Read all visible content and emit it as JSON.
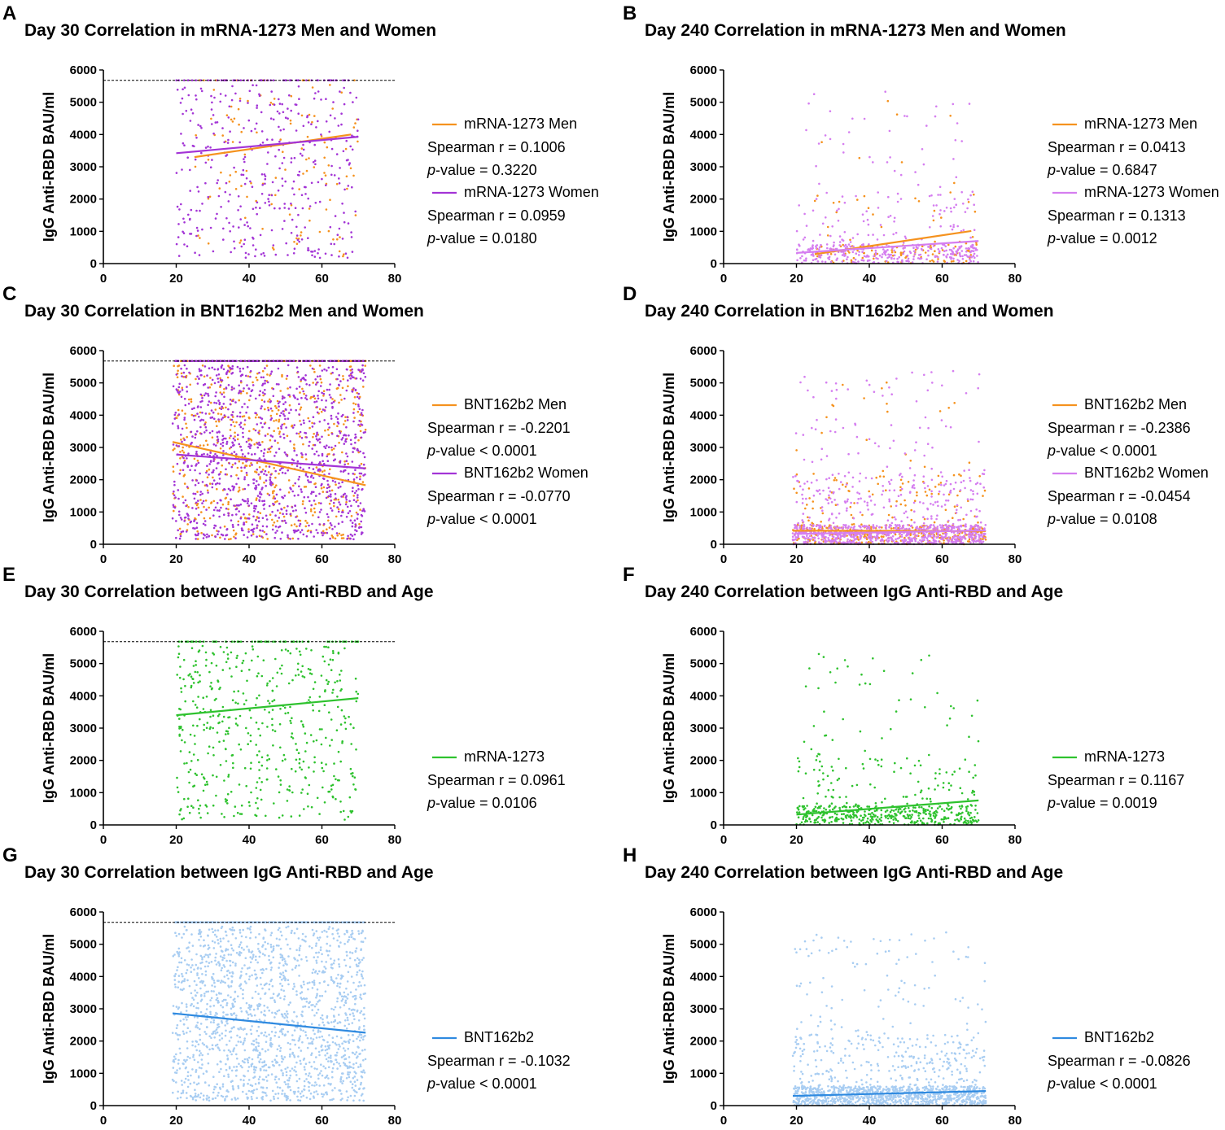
{
  "figure": {
    "ylabel": "IgG Anti-RBD BAU/ml",
    "colors": {
      "orange": "#f5921e",
      "purple": "#a334d6",
      "pink": "#d57ef0",
      "green": "#2ec22e",
      "blue": "#5ba7ee",
      "lightblue": "#a8cdf2",
      "red": "#e8553a"
    }
  },
  "chart_data": [
    {
      "panel": "A",
      "type": "scatter",
      "title": "Day 30 Correlation in mRNA-1273 Men and Women",
      "xlabel": "",
      "ylabel": "IgG Anti-RBD BAU/ml",
      "xlim": [
        0,
        80
      ],
      "ylim": [
        0,
        6000
      ],
      "xticks": [
        0,
        20,
        40,
        60,
        80
      ],
      "yticks": [
        0,
        1000,
        2000,
        3000,
        4000,
        5000,
        6000
      ],
      "ceiling": 5680,
      "series": [
        {
          "name": "mRNA-1273 Men",
          "color": "#f5921e",
          "n": 130,
          "xrange": [
            25,
            70
          ],
          "ydist": "wide",
          "fit": {
            "x": [
              25,
              68
            ],
            "y": [
              3300,
              4000
            ]
          },
          "stats": [
            "Spearman r = 0.1006",
            "p-value = 0.3220"
          ]
        },
        {
          "name": "mRNA-1273 Women",
          "color": "#a334d6",
          "n": 430,
          "xrange": [
            20,
            70
          ],
          "ydist": "wide",
          "fit": {
            "x": [
              20,
              70
            ],
            "y": [
              3420,
              3930
            ]
          },
          "stats": [
            "Spearman r = 0.0959",
            "p-value = 0.0180"
          ]
        }
      ]
    },
    {
      "panel": "B",
      "type": "scatter",
      "title": "Day 240 Correlation in mRNA-1273 Men and Women",
      "xlabel": "",
      "ylabel": "IgG Anti-RBD BAU/ml",
      "xlim": [
        0,
        80
      ],
      "ylim": [
        0,
        6000
      ],
      "xticks": [
        0,
        20,
        40,
        60,
        80
      ],
      "yticks": [
        0,
        1000,
        2000,
        3000,
        4000,
        5000,
        6000
      ],
      "ceiling": null,
      "series": [
        {
          "name": "mRNA-1273 Men",
          "color": "#f5921e",
          "n": 130,
          "xrange": [
            25,
            70
          ],
          "ydist": "low",
          "fit": {
            "x": [
              25,
              68
            ],
            "y": [
              290,
              1010
            ]
          },
          "stats": [
            "Spearman r = 0.0413",
            "p-value = 0.6847"
          ]
        },
        {
          "name": "mRNA-1273 Women",
          "color": "#d57ef0",
          "n": 430,
          "xrange": [
            20,
            70
          ],
          "ydist": "low",
          "fit": {
            "x": [
              20,
              70
            ],
            "y": [
              330,
              700
            ]
          },
          "stats": [
            "Spearman r = 0.1313",
            "p-value = 0.0012"
          ]
        }
      ]
    },
    {
      "panel": "C",
      "type": "scatter",
      "title": "Day 30 Correlation in BNT162b2 Men and Women",
      "xlabel": "",
      "ylabel": "IgG Anti-RBD BAU/ml",
      "xlim": [
        0,
        80
      ],
      "ylim": [
        0,
        6000
      ],
      "xticks": [
        0,
        20,
        40,
        60,
        80
      ],
      "yticks": [
        0,
        1000,
        2000,
        3000,
        4000,
        5000,
        6000
      ],
      "ceiling": 5680,
      "series": [
        {
          "name": "BNT162b2 Men",
          "color": "#f5921e",
          "n": 650,
          "xrange": [
            19,
            72
          ],
          "ydist": "wide",
          "fit": {
            "x": [
              19,
              72
            ],
            "y": [
              3170,
              1830
            ]
          },
          "stats": [
            "Spearman r = -0.2201",
            "p-value < 0.0001"
          ]
        },
        {
          "name": "BNT162b2 Women",
          "color": "#a334d6",
          "n": 1300,
          "xrange": [
            19,
            72
          ],
          "ydist": "wide",
          "fit": {
            "x": [
              20,
              72
            ],
            "y": [
              2780,
              2350
            ]
          },
          "stats": [
            "Spearman r = -0.0770",
            "p-value < 0.0001"
          ]
        }
      ]
    },
    {
      "panel": "D",
      "type": "scatter",
      "title": "Day 240 Correlation in BNT162b2 Men and Women",
      "xlabel": "",
      "ylabel": "IgG Anti-RBD BAU/ml",
      "xlim": [
        0,
        80
      ],
      "ylim": [
        0,
        6000
      ],
      "xticks": [
        0,
        20,
        40,
        60,
        80
      ],
      "yticks": [
        0,
        1000,
        2000,
        3000,
        4000,
        5000,
        6000
      ],
      "ceiling": null,
      "series": [
        {
          "name": "BNT162b2 Men",
          "color": "#f5921e",
          "n": 450,
          "xrange": [
            19,
            72
          ],
          "ydist": "low",
          "fit": {
            "x": [
              19,
              72
            ],
            "y": [
              420,
              410
            ]
          },
          "stats": [
            "Spearman r = -0.2386",
            "p-value < 0.0001"
          ]
        },
        {
          "name": "BNT162b2 Women",
          "color": "#d57ef0",
          "n": 1000,
          "xrange": [
            19,
            72
          ],
          "ydist": "low",
          "fit": {
            "x": [
              20,
              72
            ],
            "y": [
              320,
              430
            ]
          },
          "stats": [
            "Spearman r = -0.0454",
            "p-value = 0.0108"
          ]
        }
      ]
    },
    {
      "panel": "E",
      "type": "scatter",
      "title": "Day 30 Correlation between IgG Anti-RBD and Age",
      "xlabel": "",
      "ylabel": "IgG Anti-RBD BAU/ml",
      "xlim": [
        0,
        80
      ],
      "ylim": [
        0,
        6000
      ],
      "xticks": [
        0,
        20,
        40,
        60,
        80
      ],
      "yticks": [
        0,
        1000,
        2000,
        3000,
        4000,
        5000,
        6000
      ],
      "ceiling": 5680,
      "series": [
        {
          "name": "mRNA-1273",
          "color": "#2ec22e",
          "n": 560,
          "xrange": [
            20,
            70
          ],
          "ydist": "wide",
          "fit": {
            "x": [
              20,
              70
            ],
            "y": [
              3400,
              3930
            ]
          },
          "stats": [
            "Spearman r = 0.0961",
            "p-value = 0.0106"
          ]
        }
      ]
    },
    {
      "panel": "F",
      "type": "scatter",
      "title": "Day 240 Correlation between IgG Anti-RBD and Age",
      "xlabel": "",
      "ylabel": "IgG Anti-RBD BAU/ml",
      "xlim": [
        0,
        80
      ],
      "ylim": [
        0,
        6000
      ],
      "xticks": [
        0,
        20,
        40,
        60,
        80
      ],
      "yticks": [
        0,
        1000,
        2000,
        3000,
        4000,
        5000,
        6000
      ],
      "ceiling": null,
      "series": [
        {
          "name": "mRNA-1273",
          "color": "#2ec22e",
          "n": 560,
          "xrange": [
            20,
            70
          ],
          "ydist": "low",
          "fit": {
            "x": [
              20,
              70
            ],
            "y": [
              320,
              760
            ]
          },
          "stats": [
            "Spearman r = 0.1167",
            "p-value = 0.0019"
          ]
        }
      ]
    },
    {
      "panel": "G",
      "type": "scatter",
      "title": "Day 30 Correlation between IgG Anti-RBD and Age",
      "xlabel": "",
      "ylabel": "IgG Anti-RBD BAU/ml",
      "xlim": [
        0,
        80
      ],
      "ylim": [
        0,
        6000
      ],
      "xticks": [
        0,
        20,
        40,
        60,
        80
      ],
      "yticks": [
        0,
        1000,
        2000,
        3000,
        4000,
        5000,
        6000
      ],
      "ceiling": 5680,
      "series": [
        {
          "name": "BNT162b2",
          "color": "#a8cdf2",
          "lineColor": "#2f8ae0",
          "n": 1900,
          "xrange": [
            19,
            72
          ],
          "ydist": "wide",
          "fit": {
            "x": [
              19,
              72
            ],
            "y": [
              2860,
              2260
            ]
          },
          "stats": [
            "Spearman r = -0.1032",
            "p-value < 0.0001"
          ]
        }
      ]
    },
    {
      "panel": "H",
      "type": "scatter",
      "title": "Day 240 Correlation between IgG Anti-RBD and Age",
      "xlabel": "",
      "ylabel": "IgG Anti-RBD BAU/ml",
      "xlim": [
        0,
        80
      ],
      "ylim": [
        0,
        6000
      ],
      "xticks": [
        0,
        20,
        40,
        60,
        80
      ],
      "yticks": [
        0,
        1000,
        2000,
        3000,
        4000,
        5000,
        6000
      ],
      "ceiling": null,
      "series": [
        {
          "name": "BNT162b2",
          "color": "#a8cdf2",
          "lineColor": "#2f8ae0",
          "n": 1400,
          "xrange": [
            19,
            72
          ],
          "ydist": "low",
          "fit": {
            "x": [
              19,
              72
            ],
            "y": [
              300,
              450
            ]
          },
          "stats": [
            "Spearman r = -0.0826",
            "p-value < 0.0001"
          ]
        }
      ]
    }
  ]
}
